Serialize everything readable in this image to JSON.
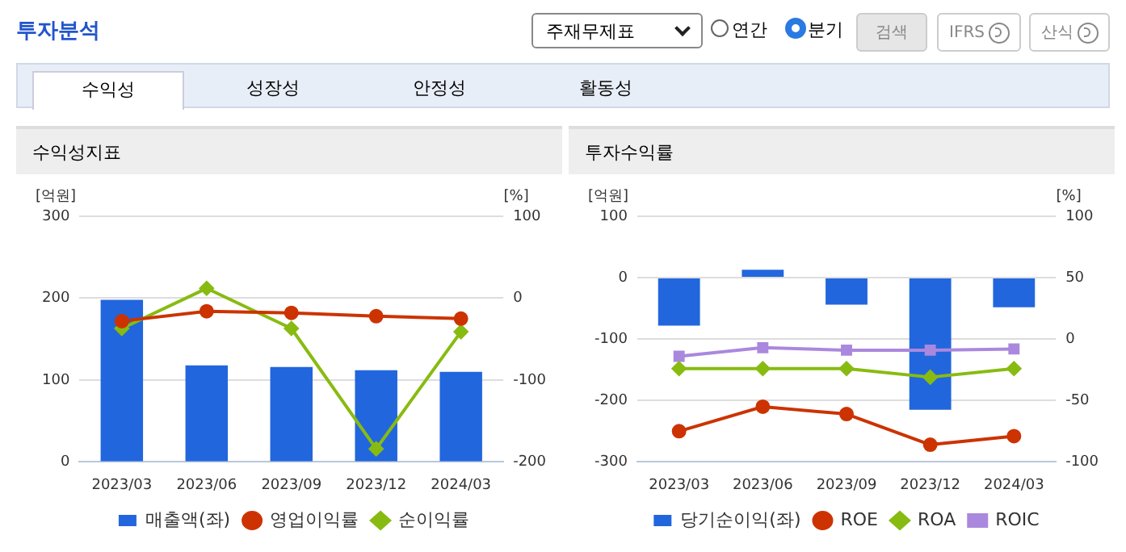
{
  "chart_data": [
    {
      "type": "other",
      "title": "투자분석",
      "annotations": [
        "주재무제표",
        "연간",
        "분기",
        "검색",
        "IFRS",
        "산식",
        "수익성",
        "성장성",
        "안정성",
        "활동성"
      ]
    },
    {
      "type": "bar",
      "title": "수익성지표",
      "ylabel": "[억원]",
      "y2label": "[%]",
      "categories": [
        "2023/03",
        "2023/06",
        "2023/09",
        "2023/12",
        "2024/03"
      ],
      "series": [
        {
          "name": "매출액(좌)",
          "type": "bar",
          "color": "#2266dd",
          "values": [
            198,
            118,
            116,
            112,
            110
          ]
        },
        {
          "name": "영업이익률",
          "type": "line",
          "axis": "y2",
          "marker": "circle",
          "color": "#cc3300",
          "values": [
            -28,
            -16,
            -18,
            -22,
            -25
          ]
        },
        {
          "name": "순이익률",
          "type": "line",
          "axis": "y2",
          "marker": "diamond",
          "color": "#88bb11",
          "values": [
            -37,
            12,
            -37,
            -184,
            -41
          ]
        }
      ],
      "ylim": [
        0,
        300
      ],
      "yticks": [
        0,
        100,
        200,
        300
      ],
      "y2lim": [
        -200,
        100
      ],
      "y2ticks": [
        -200,
        -100,
        0,
        100
      ],
      "grid": "y",
      "legend": "bottom"
    },
    {
      "type": "bar",
      "title": "투자수익률",
      "ylabel": "[억원]",
      "y2label": "[%]",
      "categories": [
        "2023/03",
        "2023/06",
        "2023/09",
        "2023/12",
        "2024/03"
      ],
      "series": [
        {
          "name": "당기순이익(좌)",
          "type": "bar",
          "color": "#2266dd",
          "values": [
            -78,
            13,
            -44,
            -215,
            -48
          ]
        },
        {
          "name": "ROE",
          "type": "line",
          "axis": "y2",
          "marker": "circle",
          "color": "#cc3300",
          "values": [
            -75,
            -55,
            -61,
            -86,
            -79
          ]
        },
        {
          "name": "ROA",
          "type": "line",
          "axis": "y2",
          "marker": "diamond",
          "color": "#88bb11",
          "values": [
            -24,
            -24,
            -24,
            -31,
            -24
          ]
        },
        {
          "name": "ROIC",
          "type": "line",
          "axis": "y2",
          "marker": "square",
          "color": "#aa88dd",
          "values": [
            -14,
            -7,
            -9,
            -9,
            -8
          ]
        }
      ],
      "ylim": [
        -300,
        100
      ],
      "yticks": [
        -300,
        -200,
        -100,
        0,
        100
      ],
      "y2lim": [
        -100,
        100
      ],
      "y2ticks": [
        -100,
        -50,
        0,
        50,
        100
      ],
      "grid": "y",
      "legend": "bottom"
    }
  ]
}
